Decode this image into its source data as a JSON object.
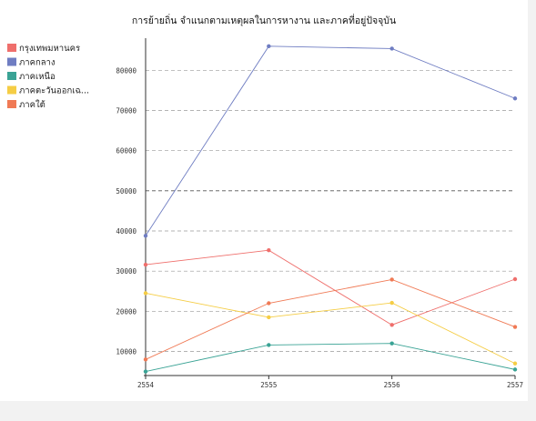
{
  "chart_data": {
    "type": "line",
    "title": "การย้ายถิ่น จำแนกตามเหตุผลในการหางาน และภาคที่อยู่ปัจจุบัน",
    "xlabel": "",
    "ylabel": "",
    "x": [
      "2554",
      "2555",
      "2556",
      "2557"
    ],
    "ylim": [
      4000,
      88000
    ],
    "yticks": [
      10000,
      20000,
      30000,
      40000,
      50000,
      60000,
      70000,
      80000
    ],
    "grid": true,
    "legend_position": "top-left",
    "series": [
      {
        "name": "กรุงเทพมหานคร",
        "color": "#ef6f6c",
        "values": [
          31600,
          35200,
          16600,
          28000
        ]
      },
      {
        "name": "ภาคกลาง",
        "color": "#6f7dc2",
        "values": [
          38800,
          86000,
          85400,
          73000
        ]
      },
      {
        "name": "ภาคเหนือ",
        "color": "#3aa395",
        "values": [
          5000,
          11600,
          12000,
          5500
        ]
      },
      {
        "name": "ภาคตะวันออกเฉ...",
        "color": "#f5cd45",
        "values": [
          24500,
          18500,
          22100,
          7000
        ]
      },
      {
        "name": "ภาคใต้",
        "color": "#f07a55",
        "values": [
          8000,
          22000,
          27900,
          16100
        ]
      }
    ]
  }
}
